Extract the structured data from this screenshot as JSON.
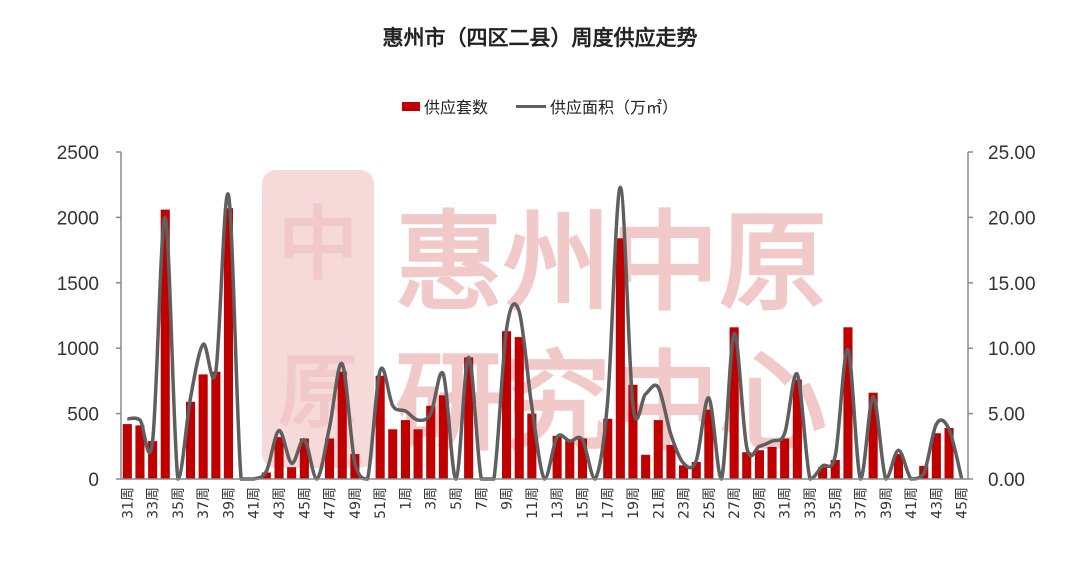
{
  "title": "惠州市（四区二县）周度供应走势",
  "legend": {
    "bar_label": "供应套数",
    "line_label": "供应面积（万㎡）"
  },
  "watermark": {
    "line1": "惠州中原",
    "line2": "研究中心",
    "seal_top": "中",
    "seal_bottom": "原"
  },
  "colors": {
    "bar": "#c00000",
    "line": "#5f5f5f",
    "watermark": "#f2c9c9"
  },
  "chart_data": {
    "type": "bar+line",
    "title": "惠州市（四区二县）周度供应走势",
    "xlabel": "",
    "ylabel_left": "供应套数",
    "ylabel_right": "供应面积（万㎡）",
    "ylim_left": [
      0,
      2500
    ],
    "ylim_right": [
      0,
      25
    ],
    "yticks_left": [
      "0",
      "500",
      "1000",
      "1500",
      "2000",
      "2500"
    ],
    "yticks_right": [
      "0.00",
      "5.00",
      "10.00",
      "15.00",
      "20.00",
      "25.00"
    ],
    "grid": false,
    "legend_position": "top",
    "categories": [
      "31周",
      "32周",
      "33周",
      "34周",
      "35周",
      "36周",
      "37周",
      "38周",
      "39周",
      "40周",
      "41周",
      "42周",
      "43周",
      "44周",
      "45周",
      "46周",
      "47周",
      "48周",
      "49周",
      "50周",
      "51周",
      "52周",
      "1周",
      "2周",
      "3周",
      "4周",
      "5周",
      "6周",
      "7周",
      "8周",
      "9周",
      "10周",
      "11周",
      "12周",
      "13周",
      "14周",
      "15周",
      "16周",
      "17周",
      "18周",
      "19周",
      "20周",
      "21周",
      "22周",
      "23周",
      "24周",
      "25周",
      "26周",
      "27周",
      "28周",
      "29周",
      "30周",
      "31周",
      "32周",
      "33周",
      "34周",
      "35周",
      "36周",
      "37周",
      "38周",
      "39周",
      "40周",
      "41周",
      "42周",
      "43周",
      "44周",
      "45周"
    ],
    "xtick_labels": [
      "31周",
      "33周",
      "35周",
      "37周",
      "39周",
      "41周",
      "43周",
      "45周",
      "47周",
      "49周",
      "51周",
      "1周",
      "3周",
      "5周",
      "7周",
      "9周",
      "11周",
      "13周",
      "15周",
      "17周",
      "19周",
      "21周",
      "23周",
      "25周",
      "27周",
      "29周",
      "31周",
      "33周",
      "35周",
      "37周",
      "39周",
      "41周",
      "43周",
      "45周"
    ],
    "series": [
      {
        "name": "供应套数",
        "type": "bar",
        "axis": "left",
        "values": [
          420,
          410,
          290,
          2060,
          0,
          590,
          800,
          820,
          2070,
          0,
          0,
          50,
          320,
          90,
          310,
          0,
          310,
          820,
          190,
          0,
          790,
          380,
          450,
          380,
          560,
          640,
          0,
          930,
          0,
          0,
          1130,
          1085,
          500,
          0,
          330,
          300,
          310,
          0,
          460,
          1840,
          720,
          185,
          450,
          260,
          105,
          130,
          530,
          0,
          1160,
          205,
          220,
          245,
          310,
          760,
          0,
          90,
          145,
          1160,
          0,
          660,
          0,
          190,
          0,
          100,
          350,
          390,
          0
        ]
      },
      {
        "name": "供应面积（万㎡）",
        "type": "line",
        "axis": "right",
        "values": [
          4.6,
          4.5,
          2.9,
          20.0,
          0,
          6.2,
          10.3,
          8.2,
          21.7,
          0,
          0,
          0.6,
          3.7,
          1.2,
          3.0,
          0,
          4.0,
          8.8,
          1.2,
          0,
          8.3,
          5.6,
          5.2,
          4.5,
          5.0,
          8.0,
          0,
          9.3,
          0,
          0,
          11.5,
          12.8,
          5.5,
          0,
          3.2,
          2.9,
          3.0,
          0,
          6.0,
          22.3,
          5.6,
          6.5,
          7.0,
          3.4,
          1.2,
          1.4,
          6.2,
          0,
          11.1,
          2.4,
          2.5,
          2.9,
          3.5,
          8.0,
          0,
          1.0,
          1.8,
          9.9,
          0,
          6.3,
          0,
          2.2,
          0,
          0.4,
          4.2,
          3.8,
          0
        ]
      }
    ]
  }
}
